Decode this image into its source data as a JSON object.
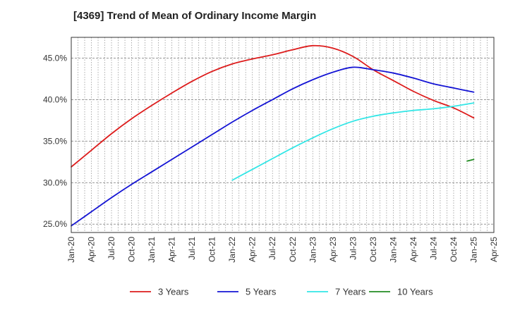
{
  "chart_data": {
    "type": "line",
    "title": "[4369]  Trend of Mean of Ordinary Income Margin",
    "xlabel": "",
    "ylabel": "",
    "x_ticks": [
      "Jan-20",
      "Apr-20",
      "Jul-20",
      "Oct-20",
      "Jan-21",
      "Apr-21",
      "Jul-21",
      "Oct-21",
      "Jan-22",
      "Apr-22",
      "Jul-22",
      "Oct-22",
      "Jan-23",
      "Apr-23",
      "Jul-23",
      "Oct-23",
      "Jan-24",
      "Apr-24",
      "Jul-24",
      "Oct-24",
      "Jan-25",
      "Apr-25"
    ],
    "y_ticks": [
      25.0,
      30.0,
      35.0,
      40.0,
      45.0
    ],
    "y_tick_labels": [
      "25.0%",
      "30.0%",
      "35.0%",
      "40.0%",
      "45.0%"
    ],
    "ylim": [
      24.0,
      47.5
    ],
    "grid": true,
    "legend_position": "bottom",
    "series": [
      {
        "name": "3 Years",
        "color": "#dd1c1c",
        "points": [
          [
            "Jan-20",
            31.9
          ],
          [
            "Apr-20",
            33.9
          ],
          [
            "Jul-20",
            35.9
          ],
          [
            "Oct-20",
            37.7
          ],
          [
            "Jan-21",
            39.3
          ],
          [
            "Apr-21",
            40.8
          ],
          [
            "Jul-21",
            42.2
          ],
          [
            "Oct-21",
            43.4
          ],
          [
            "Jan-22",
            44.3
          ],
          [
            "Apr-22",
            44.9
          ],
          [
            "Jul-22",
            45.4
          ],
          [
            "Oct-22",
            46.0
          ],
          [
            "Jan-23",
            46.5
          ],
          [
            "Apr-23",
            46.2
          ],
          [
            "Jul-23",
            45.2
          ],
          [
            "Oct-23",
            43.6
          ],
          [
            "Jan-24",
            42.3
          ],
          [
            "Apr-24",
            41.0
          ],
          [
            "Jul-24",
            39.9
          ],
          [
            "Oct-24",
            39.0
          ],
          [
            "Jan-25",
            37.8
          ]
        ]
      },
      {
        "name": "5 Years",
        "color": "#1414d4",
        "points": [
          [
            "Jan-20",
            24.8
          ],
          [
            "Apr-20",
            26.5
          ],
          [
            "Jul-20",
            28.2
          ],
          [
            "Oct-20",
            29.8
          ],
          [
            "Jan-21",
            31.3
          ],
          [
            "Apr-21",
            32.8
          ],
          [
            "Jul-21",
            34.3
          ],
          [
            "Oct-21",
            35.8
          ],
          [
            "Jan-22",
            37.3
          ],
          [
            "Apr-22",
            38.7
          ],
          [
            "Jul-22",
            40.0
          ],
          [
            "Oct-22",
            41.3
          ],
          [
            "Jan-23",
            42.4
          ],
          [
            "Apr-23",
            43.3
          ],
          [
            "Jul-23",
            43.9
          ],
          [
            "Oct-23",
            43.6
          ],
          [
            "Jan-24",
            43.2
          ],
          [
            "Apr-24",
            42.6
          ],
          [
            "Jul-24",
            41.9
          ],
          [
            "Oct-24",
            41.4
          ],
          [
            "Jan-25",
            40.9
          ]
        ]
      },
      {
        "name": "7 Years",
        "color": "#33e6e6",
        "points": [
          [
            "Jan-22",
            30.3
          ],
          [
            "Apr-22",
            31.6
          ],
          [
            "Jul-22",
            32.9
          ],
          [
            "Oct-22",
            34.2
          ],
          [
            "Jan-23",
            35.4
          ],
          [
            "Apr-23",
            36.5
          ],
          [
            "Jul-23",
            37.4
          ],
          [
            "Oct-23",
            38.0
          ],
          [
            "Jan-24",
            38.4
          ],
          [
            "Apr-24",
            38.7
          ],
          [
            "Jul-24",
            38.9
          ],
          [
            "Oct-24",
            39.2
          ],
          [
            "Jan-25",
            39.6
          ]
        ]
      },
      {
        "name": "10 Years",
        "color": "#228b22",
        "points": [
          [
            "Dec-24",
            32.6
          ],
          [
            "Jan-25",
            32.8
          ]
        ]
      }
    ]
  }
}
